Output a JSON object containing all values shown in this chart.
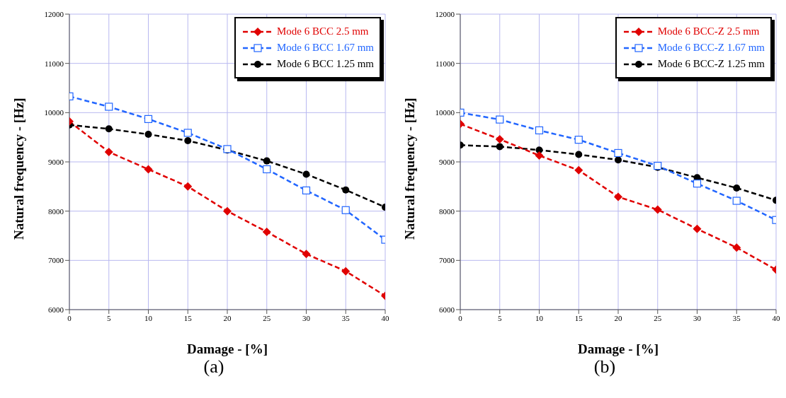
{
  "chart_data": [
    {
      "type": "line",
      "xlabel": "Damage - [%]",
      "ylabel": "Natural frequency - [Hz]",
      "x": [
        0,
        5,
        10,
        15,
        20,
        25,
        30,
        35,
        40
      ],
      "xlim": [
        0,
        40
      ],
      "xticks": [
        0,
        5,
        10,
        15,
        20,
        25,
        30,
        35,
        40
      ],
      "ylim": [
        6000,
        12000
      ],
      "yticks": [
        6000,
        7000,
        8000,
        9000,
        10000,
        11000,
        12000
      ],
      "grid": true,
      "legend": "top right",
      "line_style": "dashed",
      "annotations": [
        "(a)"
      ],
      "series": [
        {
          "name": "Mode 6 BCC 2.5 mm",
          "color": "#e00000",
          "marker": "diamond",
          "values": [
            9820,
            9200,
            8850,
            8500,
            8000,
            7580,
            7130,
            6780,
            6280
          ]
        },
        {
          "name": "Mode 6 BCC 1.67 mm",
          "color": "#2266ff",
          "marker": "square",
          "values": [
            10330,
            10120,
            9870,
            9590,
            9260,
            8850,
            8420,
            8020,
            7420
          ]
        },
        {
          "name": "Mode 6 BCC 1.25 mm",
          "color": "#000000",
          "marker": "circle",
          "values": [
            9750,
            9670,
            9560,
            9430,
            9240,
            9020,
            8750,
            8430,
            8080
          ]
        }
      ]
    },
    {
      "type": "line",
      "xlabel": "Damage - [%]",
      "ylabel": "Natural frequency - [Hz]",
      "x": [
        0,
        5,
        10,
        15,
        20,
        25,
        30,
        35,
        40
      ],
      "xlim": [
        0,
        40
      ],
      "xticks": [
        0,
        5,
        10,
        15,
        20,
        25,
        30,
        35,
        40
      ],
      "ylim": [
        6000,
        12000
      ],
      "yticks": [
        6000,
        7000,
        8000,
        9000,
        10000,
        11000,
        12000
      ],
      "grid": true,
      "legend": "top right",
      "line_style": "dashed",
      "annotations": [
        "(b)"
      ],
      "series": [
        {
          "name": "Mode 6 BCC-Z 2.5 mm",
          "color": "#e00000",
          "marker": "diamond",
          "values": [
            9770,
            9460,
            9130,
            8830,
            8290,
            8030,
            7640,
            7260,
            6810
          ]
        },
        {
          "name": "Mode 6 BCC-Z 1.67 mm",
          "color": "#2266ff",
          "marker": "square",
          "values": [
            10000,
            9860,
            9640,
            9450,
            9180,
            8920,
            8560,
            8210,
            7820
          ]
        },
        {
          "name": "Mode 6 BCC-Z 1.25 mm",
          "color": "#000000",
          "marker": "circle",
          "values": [
            9340,
            9310,
            9240,
            9150,
            9040,
            8890,
            8680,
            8470,
            8220
          ]
        }
      ]
    }
  ]
}
